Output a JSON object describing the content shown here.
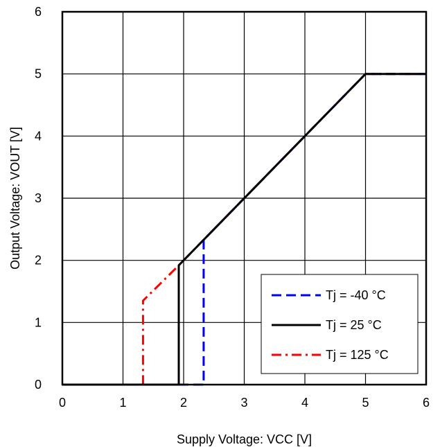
{
  "chart_data": {
    "type": "line",
    "title": "",
    "xlabel": "Supply Voltage: VCC [V]",
    "ylabel": "Output Voltage: VOUT [V]",
    "xlim": [
      0,
      6
    ],
    "ylim": [
      0,
      6
    ],
    "xticks": [
      "0",
      "1",
      "2",
      "3",
      "4",
      "5",
      "6"
    ],
    "yticks": [
      "0",
      "1",
      "2",
      "3",
      "4",
      "5",
      "6"
    ],
    "grid": true,
    "legend_position": "bottom-right",
    "series": [
      {
        "name": "Tj = -40 °C",
        "color": "#0000ff",
        "dash": "dashed",
        "points": [
          [
            0,
            0
          ],
          [
            2.33,
            0
          ],
          [
            2.33,
            2.33
          ],
          [
            2.4,
            2.4
          ],
          [
            5.0,
            5.0
          ],
          [
            6.0,
            5.0
          ]
        ]
      },
      {
        "name": "Tj = 25 °C",
        "color": "#000000",
        "dash": "solid",
        "points": [
          [
            0,
            0
          ],
          [
            1.92,
            0
          ],
          [
            1.92,
            1.92
          ],
          [
            2.0,
            2.0
          ],
          [
            5.0,
            5.0
          ],
          [
            6.0,
            5.0
          ]
        ]
      },
      {
        "name": "Tj = 125 °C",
        "color": "#ff0000",
        "dash": "dashdot",
        "points": [
          [
            0,
            0
          ],
          [
            1.33,
            0
          ],
          [
            1.33,
            1.35
          ],
          [
            1.9,
            1.9
          ],
          [
            5.0,
            5.0
          ],
          [
            6.0,
            5.0
          ]
        ]
      }
    ]
  }
}
